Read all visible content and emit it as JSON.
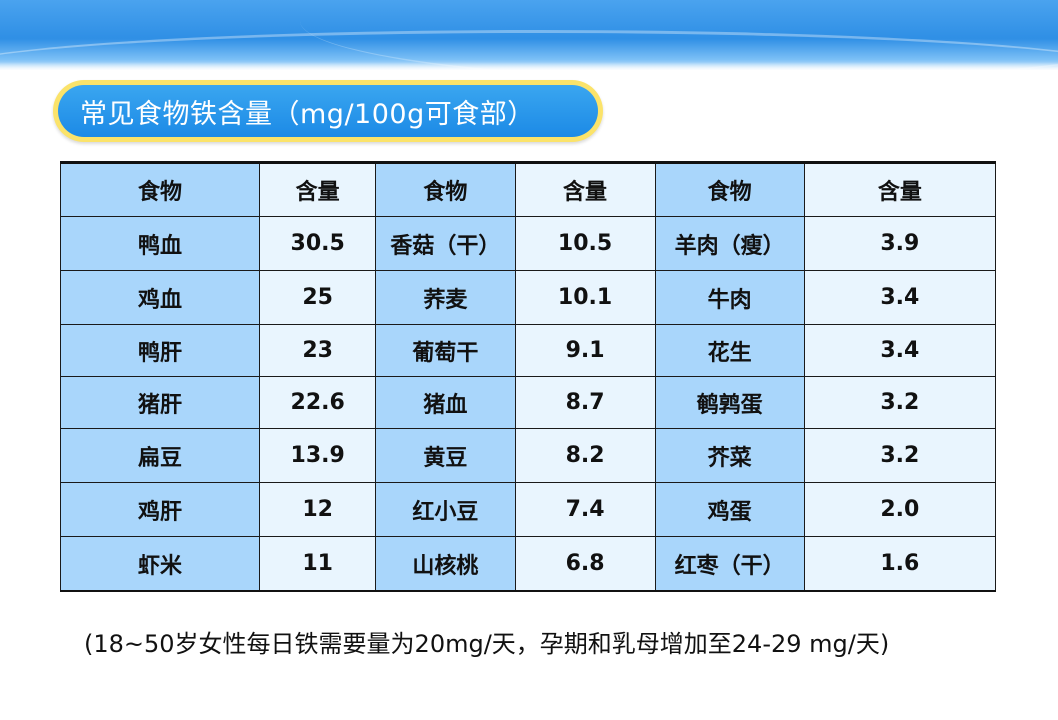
{
  "title": "常见食物铁含量（mg/100g可食部）",
  "table": {
    "headers": [
      "食物",
      "含量",
      "食物",
      "含量",
      "食物",
      "含量"
    ],
    "rows": [
      [
        "鸭血",
        "30.5",
        "香菇（干）",
        "10.5",
        "羊肉（瘦）",
        "3.9"
      ],
      [
        "鸡血",
        "25",
        "荞麦",
        "10.1",
        "牛肉",
        "3.4"
      ],
      [
        "鸭肝",
        "23",
        "葡萄干",
        "9.1",
        "花生",
        "3.4"
      ],
      [
        "猪肝",
        "22.6",
        "猪血",
        "8.7",
        "鹌鹑蛋",
        "3.2"
      ],
      [
        "扁豆",
        "13.9",
        "黄豆",
        "8.2",
        "芥菜",
        "3.2"
      ],
      [
        "鸡肝",
        "12",
        "红小豆",
        "7.4",
        "鸡蛋",
        "2.0"
      ],
      [
        "虾米",
        "11",
        "山核桃",
        "6.8",
        "红枣（干）",
        "1.6"
      ]
    ]
  },
  "footnote": "(18~50岁女性每日铁需要量为20mg/天，孕期和乳母增加至24-29 mg/天)",
  "colors": {
    "banner": "#2f8fe5",
    "pill_border": "#fbe36a",
    "pill_fill": "#1c8ae6",
    "food_cell": "#a9d6fb",
    "value_cell": "#e9f5fe"
  }
}
